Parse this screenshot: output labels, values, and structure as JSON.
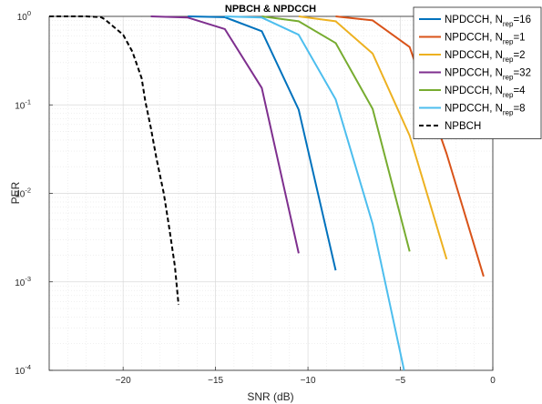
{
  "chart_data": {
    "type": "line",
    "title": "NPBCH & NPDCCH",
    "xlabel": "SNR (dB)",
    "ylabel": "PER",
    "xlim": [
      -24,
      0
    ],
    "ylim": [
      0.0001,
      1
    ],
    "yscale": "log",
    "grid": true,
    "minor_grid": true,
    "legend_position": "top-right",
    "x_ticks": [
      -20,
      -15,
      -10,
      -5,
      0
    ],
    "x_tick_labels": [
      "−20",
      "−15",
      "−10",
      "−5",
      "0"
    ],
    "y_ticks": [
      0.0001,
      0.001,
      0.01,
      0.1,
      1
    ],
    "y_tick_labels": [
      {
        "base": "10",
        "exp": "-4"
      },
      {
        "base": "10",
        "exp": "-3"
      },
      {
        "base": "10",
        "exp": "-2"
      },
      {
        "base": "10",
        "exp": "-1"
      },
      {
        "base": "10",
        "exp": "0"
      }
    ],
    "series": [
      {
        "name": "NPDCCH, N",
        "name_sub": "rep",
        "name_suffix": "=16",
        "color": "#0072BD",
        "dash": "",
        "x": [
          -16.5,
          -14.5,
          -12.5,
          -10.5,
          -8.5
        ],
        "y": [
          1.0,
          0.98,
          0.68,
          0.088,
          0.00135
        ]
      },
      {
        "name": "NPDCCH, N",
        "name_sub": "rep",
        "name_suffix": "=1",
        "color": "#D95319",
        "dash": "",
        "x": [
          -8.5,
          -6.5,
          -4.5,
          -2.5,
          -0.5
        ],
        "y": [
          1.0,
          0.9,
          0.45,
          0.028,
          0.00115
        ]
      },
      {
        "name": "NPDCCH, N",
        "name_sub": "rep",
        "name_suffix": "=2",
        "color": "#EDB120",
        "dash": "",
        "x": [
          -10.5,
          -8.5,
          -6.5,
          -4.5,
          -2.5
        ],
        "y": [
          1.0,
          0.88,
          0.38,
          0.045,
          0.0018
        ]
      },
      {
        "name": "NPDCCH, N",
        "name_sub": "rep",
        "name_suffix": "=32",
        "color": "#7E2F8E",
        "dash": "",
        "x": [
          -18.5,
          -16.5,
          -14.5,
          -12.5,
          -10.5
        ],
        "y": [
          1.0,
          0.97,
          0.72,
          0.155,
          0.0021
        ]
      },
      {
        "name": "NPDCCH, N",
        "name_sub": "rep",
        "name_suffix": "=4",
        "color": "#77AC30",
        "dash": "",
        "x": [
          -12.5,
          -10.5,
          -8.5,
          -6.5,
          -4.5
        ],
        "y": [
          1.0,
          0.88,
          0.5,
          0.09,
          0.0022
        ]
      },
      {
        "name": "NPDCCH, N",
        "name_sub": "rep",
        "name_suffix": "=8",
        "color": "#4DBEEE",
        "dash": "",
        "x": [
          -14.5,
          -12.5,
          -10.5,
          -8.5,
          -6.5,
          -4.8
        ],
        "y": [
          1.0,
          0.97,
          0.62,
          0.115,
          0.0045,
          0.0001
        ]
      },
      {
        "name": "NPBCH",
        "name_sub": "",
        "name_suffix": "",
        "color": "#000000",
        "dash": "5,3",
        "x": [
          -24,
          -23,
          -22,
          -21.2,
          -21,
          -20,
          -19.5,
          -19,
          -18.8,
          -18.5,
          -18.2,
          -17.8,
          -17.5,
          -17.2,
          -17
        ],
        "y": [
          1.0,
          1.0,
          1.0,
          0.98,
          0.93,
          0.62,
          0.4,
          0.2,
          0.11,
          0.055,
          0.025,
          0.01,
          0.004,
          0.0015,
          0.00055
        ]
      }
    ]
  }
}
